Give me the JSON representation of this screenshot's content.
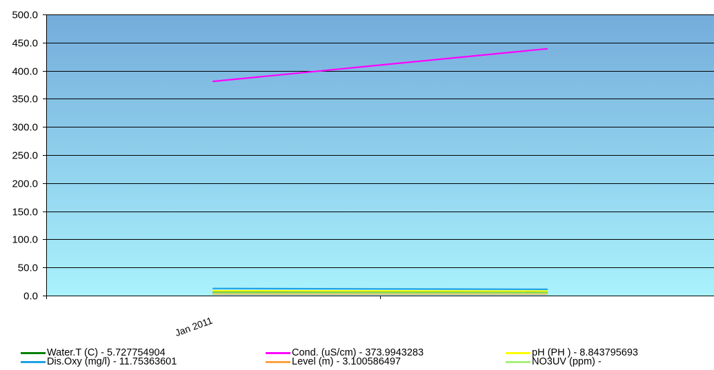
{
  "chart_data": {
    "type": "line",
    "categories": [
      "Jan 2011",
      ""
    ],
    "ylim": [
      0,
      500
    ],
    "yticks": [
      "0.0",
      "50.0",
      "100.0",
      "150.0",
      "200.0",
      "250.0",
      "300.0",
      "350.0",
      "400.0",
      "450.0",
      "500.0"
    ],
    "grid": true,
    "background_gradient": [
      "#74acdb",
      "#aaf2fd"
    ],
    "legend_position": "bottom",
    "series": [
      {
        "name": "Cond. (uS/cm)",
        "color": "#ff00ff",
        "values": [
          381,
          439
        ]
      },
      {
        "name": "Dis.Oxy (mg/l)",
        "color": "#1ca1e6",
        "values": [
          12.6,
          11.2
        ]
      },
      {
        "name": "pH (PH )",
        "color": "#ffff00",
        "values": [
          8.4,
          8.0
        ]
      },
      {
        "name": "Level (m)",
        "color": "#ffa040",
        "values": [
          3.1,
          3.1
        ]
      },
      {
        "name": "Water.T (C)",
        "color": "#008000",
        "values": [
          5.4,
          5.2
        ]
      },
      {
        "name": "NO3UV (ppm)",
        "color": "#a6f07a",
        "values": [
          4.5,
          4.5
        ]
      }
    ],
    "legend": [
      {
        "label": "Water.T (C)  -  5.727754904",
        "color": "#008000"
      },
      {
        "label": "Cond. (uS/cm)  -  373.9943283",
        "color": "#ff00ff"
      },
      {
        "label": "pH (PH )  -  8.843795693",
        "color": "#ffff00"
      },
      {
        "label": "Dis.Oxy (mg/l)  -  11.75363601",
        "color": "#1ca1e6"
      },
      {
        "label": "Level (m)  -  3.100586497",
        "color": "#ffa040"
      },
      {
        "label": "NO3UV (ppm)  -",
        "color": "#a6f07a"
      }
    ]
  }
}
